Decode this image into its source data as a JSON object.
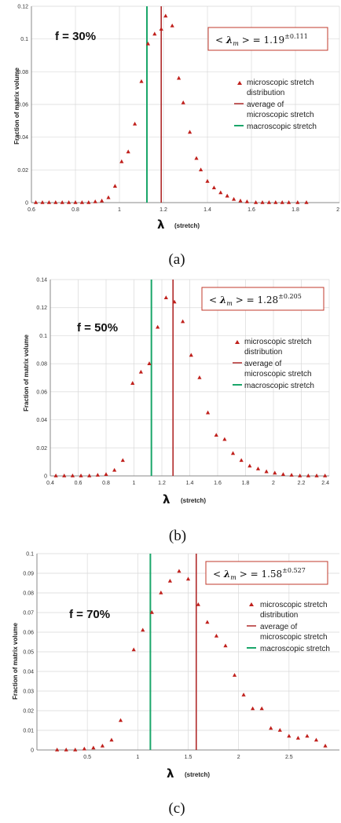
{
  "chart_data": [
    {
      "type": "scatter",
      "panel": "(a)",
      "label": "f = 30%",
      "annotation": {
        "prefix": "< ",
        "symbol": "λ",
        "subscript": "m",
        "suffix": " > = ",
        "value": "1.19",
        "sup": "±0.111"
      },
      "xlabel": "λ",
      "xunit": "(stretch)",
      "ylabel": "Fraction of matrix volume",
      "xlim": [
        0.6,
        2.0
      ],
      "ylim": [
        0,
        0.12
      ],
      "xticks": [
        0.6,
        0.8,
        1.0,
        1.2,
        1.4,
        1.6,
        1.8,
        2.0
      ],
      "xtick_labels": [
        "0.6",
        "0.8",
        "1",
        "1.2",
        "1.4",
        "1.6",
        "1.8",
        "2"
      ],
      "yticks": [
        0,
        0.02,
        0.04,
        0.06,
        0.08,
        0.1,
        0.12
      ],
      "ytick_labels": [
        "0",
        "0.02",
        "0.04",
        "0.06",
        "0.08",
        "0.1",
        "0.12"
      ],
      "average_line": 1.19,
      "macro_line": 1.125,
      "points": [
        [
          0.62,
          0
        ],
        [
          0.65,
          0
        ],
        [
          0.68,
          0
        ],
        [
          0.71,
          0
        ],
        [
          0.74,
          0
        ],
        [
          0.77,
          0
        ],
        [
          0.8,
          0
        ],
        [
          0.83,
          0
        ],
        [
          0.86,
          0
        ],
        [
          0.89,
          0.0005
        ],
        [
          0.92,
          0.001
        ],
        [
          0.95,
          0.003
        ],
        [
          0.98,
          0.01
        ],
        [
          1.01,
          0.025
        ],
        [
          1.04,
          0.031
        ],
        [
          1.07,
          0.048
        ],
        [
          1.1,
          0.074
        ],
        [
          1.13,
          0.097
        ],
        [
          1.16,
          0.103
        ],
        [
          1.19,
          0.106
        ],
        [
          1.21,
          0.114
        ],
        [
          1.24,
          0.108
        ],
        [
          1.27,
          0.076
        ],
        [
          1.29,
          0.061
        ],
        [
          1.32,
          0.043
        ],
        [
          1.35,
          0.027
        ],
        [
          1.37,
          0.02
        ],
        [
          1.4,
          0.013
        ],
        [
          1.43,
          0.009
        ],
        [
          1.46,
          0.006
        ],
        [
          1.49,
          0.004
        ],
        [
          1.52,
          0.002
        ],
        [
          1.55,
          0.001
        ],
        [
          1.58,
          0.0005
        ],
        [
          1.62,
          0
        ],
        [
          1.65,
          0
        ],
        [
          1.68,
          0
        ],
        [
          1.71,
          0
        ],
        [
          1.74,
          0
        ],
        [
          1.77,
          0
        ],
        [
          1.81,
          0
        ],
        [
          1.85,
          0
        ]
      ]
    },
    {
      "type": "scatter",
      "panel": "(b)",
      "label": "f = 50%",
      "annotation": {
        "prefix": "< ",
        "symbol": "λ",
        "subscript": "m",
        "suffix": " > = ",
        "value": "1.28",
        "sup": "±0.205"
      },
      "xlabel": "λ",
      "xunit": "(stretch)",
      "ylabel": "Fraction of matrix volume",
      "xlim": [
        0.4,
        2.4
      ],
      "ylim": [
        0,
        0.14
      ],
      "xticks": [
        0.4,
        0.6,
        0.8,
        1.0,
        1.2,
        1.4,
        1.6,
        1.8,
        2.0,
        2.2,
        2.4
      ],
      "xtick_labels": [
        "0.4",
        "0.6",
        "0.8",
        "1",
        "1.2",
        "1.4",
        "1.6",
        "1.8",
        "2",
        "2.2",
        "2.4"
      ],
      "yticks": [
        0,
        0.02,
        0.04,
        0.06,
        0.08,
        0.1,
        0.12,
        0.14
      ],
      "ytick_labels": [
        "0",
        "0.02",
        "0.04",
        "0.06",
        "0.08",
        "0.1",
        "0.12",
        "0.14"
      ],
      "average_line": 1.28,
      "macro_line": 1.125,
      "points": [
        [
          0.44,
          0
        ],
        [
          0.5,
          0
        ],
        [
          0.56,
          0
        ],
        [
          0.62,
          0
        ],
        [
          0.68,
          0
        ],
        [
          0.74,
          0.0005
        ],
        [
          0.8,
          0.001
        ],
        [
          0.86,
          0.004
        ],
        [
          0.92,
          0.011
        ],
        [
          0.99,
          0.066
        ],
        [
          1.05,
          0.074
        ],
        [
          1.11,
          0.08
        ],
        [
          1.17,
          0.106
        ],
        [
          1.23,
          0.127
        ],
        [
          1.29,
          0.124
        ],
        [
          1.35,
          0.11
        ],
        [
          1.41,
          0.086
        ],
        [
          1.47,
          0.07
        ],
        [
          1.53,
          0.045
        ],
        [
          1.59,
          0.029
        ],
        [
          1.65,
          0.026
        ],
        [
          1.71,
          0.016
        ],
        [
          1.77,
          0.011
        ],
        [
          1.83,
          0.007
        ],
        [
          1.89,
          0.005
        ],
        [
          1.95,
          0.003
        ],
        [
          2.01,
          0.002
        ],
        [
          2.07,
          0.001
        ],
        [
          2.13,
          0.0005
        ],
        [
          2.19,
          0
        ],
        [
          2.25,
          0
        ],
        [
          2.31,
          0
        ],
        [
          2.37,
          0
        ]
      ]
    },
    {
      "type": "scatter",
      "panel": "(c)",
      "label": "f = 70%",
      "annotation": {
        "prefix": "< ",
        "symbol": "λ",
        "subscript": "m",
        "suffix": " > = ",
        "value": "1.58",
        "sup": "±0.527"
      },
      "xlabel": "λ",
      "xunit": "(stretch)",
      "ylabel": "Fraction of matrix volume",
      "xlim": [
        0,
        3.0
      ],
      "ylim": [
        0,
        0.1
      ],
      "xticks": [
        0.5,
        1.0,
        1.5,
        2.0,
        2.5
      ],
      "xtick_labels": [
        "0.5",
        "1",
        "1.5",
        "2",
        "2.5"
      ],
      "yticks": [
        0,
        0.01,
        0.02,
        0.03,
        0.04,
        0.05,
        0.06,
        0.07,
        0.08,
        0.09,
        0.1
      ],
      "ytick_labels": [
        "0",
        "0.01",
        "0.02",
        "0.03",
        "0.04",
        "0.05",
        "0.06",
        "0.07",
        "0.08",
        "0.09",
        "0.1"
      ],
      "average_line": 1.58,
      "macro_line": 1.125,
      "points": [
        [
          0.2,
          0
        ],
        [
          0.29,
          0
        ],
        [
          0.38,
          0
        ],
        [
          0.47,
          0.0005
        ],
        [
          0.56,
          0.001
        ],
        [
          0.65,
          0.002
        ],
        [
          0.74,
          0.005
        ],
        [
          0.83,
          0.015
        ],
        [
          0.96,
          0.051
        ],
        [
          1.05,
          0.061
        ],
        [
          1.14,
          0.07
        ],
        [
          1.23,
          0.08
        ],
        [
          1.32,
          0.086
        ],
        [
          1.41,
          0.091
        ],
        [
          1.5,
          0.087
        ],
        [
          1.6,
          0.074
        ],
        [
          1.69,
          0.065
        ],
        [
          1.78,
          0.058
        ],
        [
          1.87,
          0.053
        ],
        [
          1.96,
          0.038
        ],
        [
          2.05,
          0.028
        ],
        [
          2.14,
          0.021
        ],
        [
          2.23,
          0.021
        ],
        [
          2.32,
          0.011
        ],
        [
          2.41,
          0.01
        ],
        [
          2.5,
          0.007
        ],
        [
          2.59,
          0.006
        ],
        [
          2.68,
          0.007
        ],
        [
          2.77,
          0.005
        ],
        [
          2.86,
          0.002
        ]
      ]
    }
  ],
  "legend": {
    "items": [
      "microscopic stretch",
      "distribution",
      "average of",
      "microscopic stretch",
      "macroscopic stretch"
    ]
  },
  "colors": {
    "points": "#c0201c",
    "average": "#b02a2a",
    "macro": "#1aa66a",
    "grid": "#d9d9d9",
    "axis": "#888888"
  }
}
